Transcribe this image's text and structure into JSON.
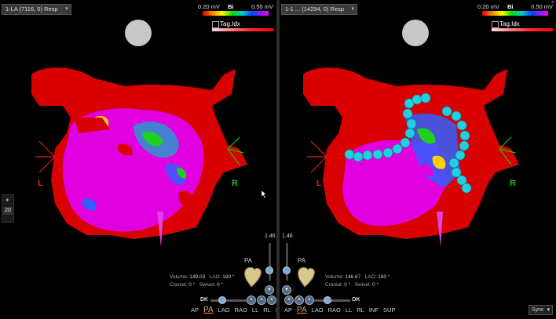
{
  "left_view": {
    "map_select": "1-LA (7116, 0)  Resp",
    "scale": {
      "low": "0.20 mV",
      "mid": "Bi",
      "high": "0.50 mV"
    },
    "tag_label": "Tag.Idx",
    "axis_left": "L",
    "axis_right": "R",
    "volume_label": "Volume:",
    "volume_value": "149.03",
    "lao_label": "LAO:",
    "lao_value": "180 °",
    "cranial_label": "Cranial:",
    "cranial_value": "0 °",
    "swivel_label": "Swivel:",
    "swivel_value": "0 °",
    "zoom": "1.46",
    "projection": "PA",
    "opacity_label": "DK"
  },
  "right_view": {
    "map_select": "1-1 ... (14294, 0)  Resp",
    "scale": {
      "low": "0.20 mV",
      "mid": "Bi",
      "high": "0.50 mV"
    },
    "tag_label": "Tag.Idx",
    "axis_left": "L",
    "axis_right": "R",
    "volume_label": "Volume:",
    "volume_value": "146.67",
    "lao_label": "LAO:",
    "lao_value": "180 °",
    "cranial_label": "Cranial:",
    "cranial_value": "0 °",
    "swivel_label": "Swivel:",
    "swivel_value": "0 °",
    "zoom": "1.46",
    "projection": "PA",
    "opacity_label": "OK"
  },
  "view_tabs": [
    "AP",
    "PA",
    "LAO",
    "RAO",
    "LL",
    "RL",
    "INF",
    "SUP"
  ],
  "active_tab": "PA",
  "left_toolbar": {
    "number": "20"
  },
  "sync_label": "Sync",
  "colors": {
    "low_voltage": "#ff00ff",
    "scar": "#e00000",
    "ablation": "#00cccc",
    "axis_left": "#e02020",
    "axis_right": "#20c020"
  }
}
